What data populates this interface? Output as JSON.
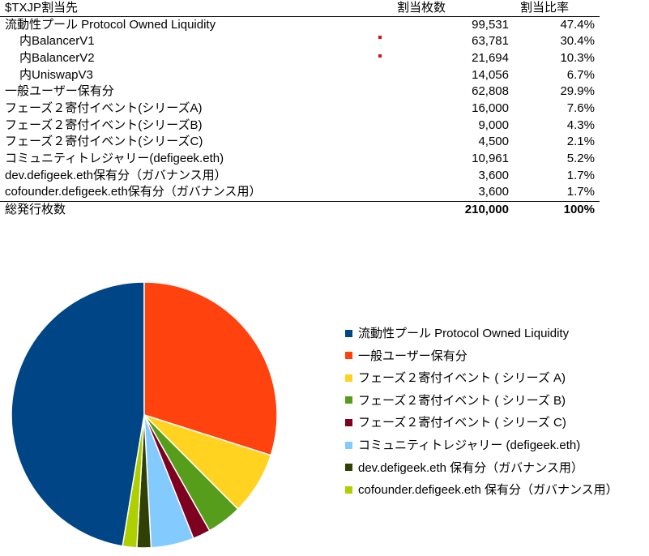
{
  "table": {
    "header": {
      "label": "$TXJP割当先",
      "count": "割当枚数",
      "pct": "割当比率"
    },
    "rows": [
      {
        "label": "流動性プール Protocol Owned Liquidity",
        "count": "99,531",
        "pct": "47.4%",
        "indent": false
      },
      {
        "label": "内BalancerV1",
        "count": "63,781",
        "pct": "30.4%",
        "indent": true
      },
      {
        "label": "内BalancerV2",
        "count": "21,694",
        "pct": "10.3%",
        "indent": true
      },
      {
        "label": "内UniswapV3",
        "count": "14,056",
        "pct": "6.7%",
        "indent": true
      },
      {
        "label": "一般ユーザー保有分",
        "count": "62,808",
        "pct": "29.9%",
        "indent": false
      },
      {
        "label": "フェーズ２寄付イベント(シリーズA)",
        "count": "16,000",
        "pct": "7.6%",
        "indent": false
      },
      {
        "label": "フェーズ２寄付イベント(シリーズB)",
        "count": "9,000",
        "pct": "4.3%",
        "indent": false
      },
      {
        "label": "フェーズ２寄付イベント(シリーズC)",
        "count": "4,500",
        "pct": "2.1%",
        "indent": false
      },
      {
        "label": "コミュニティトレジャリー(defigeek.eth)",
        "count": "10,961",
        "pct": "5.2%",
        "indent": false
      },
      {
        "label": "dev.defigeek.eth保有分（ガバナンス用）",
        "count": "3,600",
        "pct": "1.7%",
        "indent": false
      },
      {
        "label": "cofounder.defigeek.eth保有分（ガバナンス用）",
        "count": "3,600",
        "pct": "1.7%",
        "indent": false
      }
    ],
    "total": {
      "label": "総発行枚数",
      "count": "210,000",
      "pct": "100%"
    }
  },
  "chart_data": {
    "type": "pie",
    "categories": [
      "流動性プール  Protocol Owned Liquidity",
      "一般ユーザー保有分",
      "フェーズ２寄付イベント ( シリーズ A)",
      "フェーズ２寄付イベント ( シリーズ B)",
      "フェーズ２寄付イベント ( シリーズ C)",
      "コミュニティトレジャリー (defigeek.eth)",
      "dev.defigeek.eth 保有分（ガバナンス用）",
      "cofounder.defigeek.eth 保有分（ガバナンス用）"
    ],
    "values": [
      99531,
      62808,
      16000,
      9000,
      4500,
      10961,
      3600,
      3600
    ],
    "colors": [
      "#004586",
      "#ff420e",
      "#ffd320",
      "#579d1c",
      "#7e0021",
      "#83caff",
      "#314004",
      "#aecf00"
    ],
    "start": "top, clockwise, first slice counter-clockwise from top",
    "legend_position": "right"
  }
}
